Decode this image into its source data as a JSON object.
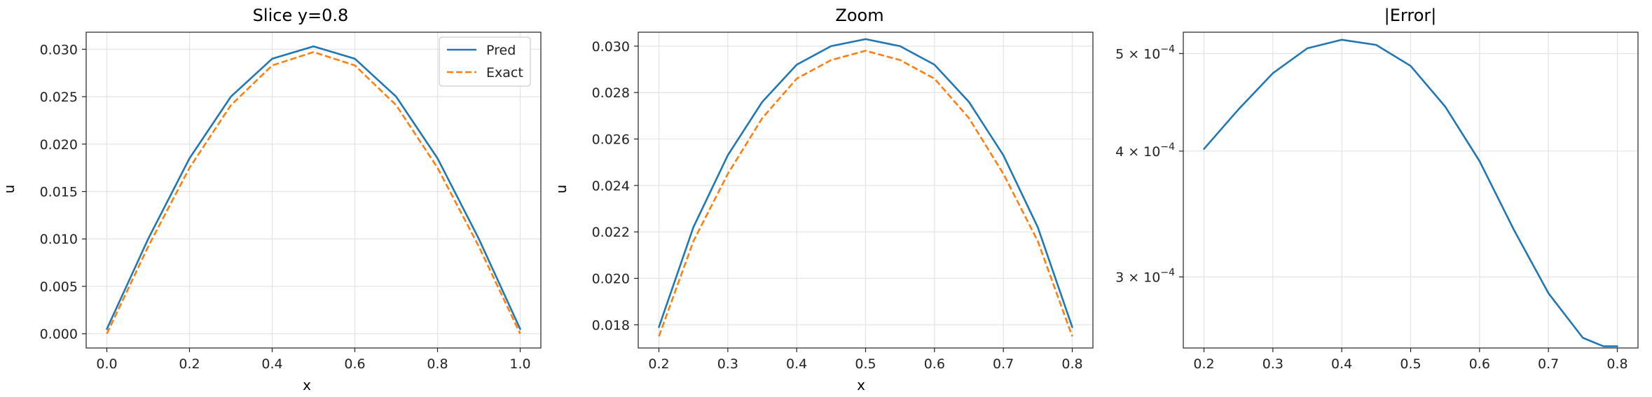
{
  "chart_data": [
    {
      "type": "line",
      "title": "Slice y=0.8",
      "xlabel": "x",
      "ylabel": "u",
      "xlim": [
        -0.05,
        1.05
      ],
      "ylim": [
        -0.0015,
        0.0318
      ],
      "xticks": [
        "0.0",
        "0.2",
        "0.4",
        "0.6",
        "0.8",
        "1.0"
      ],
      "xtick_values": [
        0.0,
        0.2,
        0.4,
        0.6,
        0.8,
        1.0
      ],
      "yticks": [
        "0.000",
        "0.005",
        "0.010",
        "0.015",
        "0.020",
        "0.025",
        "0.030"
      ],
      "ytick_values": [
        0.0,
        0.005,
        0.01,
        0.015,
        0.02,
        0.025,
        0.03
      ],
      "grid": true,
      "legend": "top-right",
      "series": [
        {
          "name": "Pred",
          "style": "solid",
          "color": "#1f77b4",
          "x": [
            0.0,
            0.1,
            0.2,
            0.3,
            0.4,
            0.5,
            0.6,
            0.7,
            0.8,
            0.9,
            1.0
          ],
          "y": [
            0.0005,
            0.01,
            0.0185,
            0.025,
            0.029,
            0.0303,
            0.029,
            0.025,
            0.0185,
            0.01,
            0.0005
          ]
        },
        {
          "name": "Exact",
          "style": "dashed",
          "color": "#ff7f0e",
          "x": [
            0.0,
            0.1,
            0.2,
            0.3,
            0.4,
            0.5,
            0.6,
            0.7,
            0.8,
            0.9,
            1.0
          ],
          "y": [
            0.0,
            0.0092,
            0.0175,
            0.0241,
            0.0283,
            0.0297,
            0.0283,
            0.0241,
            0.0175,
            0.0092,
            0.0
          ]
        }
      ]
    },
    {
      "type": "line",
      "title": "Zoom",
      "xlabel": "x",
      "ylabel": "u",
      "xlim": [
        0.17,
        0.83
      ],
      "ylim": [
        0.017,
        0.0306
      ],
      "xticks": [
        "0.2",
        "0.3",
        "0.4",
        "0.5",
        "0.6",
        "0.7",
        "0.8"
      ],
      "xtick_values": [
        0.2,
        0.3,
        0.4,
        0.5,
        0.6,
        0.7,
        0.8
      ],
      "yticks": [
        "0.018",
        "0.020",
        "0.022",
        "0.024",
        "0.026",
        "0.028",
        "0.030"
      ],
      "ytick_values": [
        0.018,
        0.02,
        0.022,
        0.024,
        0.026,
        0.028,
        0.03
      ],
      "grid": true,
      "series": [
        {
          "name": "Pred",
          "style": "solid",
          "color": "#1f77b4",
          "x": [
            0.2,
            0.25,
            0.3,
            0.35,
            0.4,
            0.45,
            0.5,
            0.55,
            0.6,
            0.65,
            0.7,
            0.75,
            0.8
          ],
          "y": [
            0.0179,
            0.0222,
            0.0253,
            0.0276,
            0.0292,
            0.03,
            0.0303,
            0.03,
            0.0292,
            0.0276,
            0.0253,
            0.0222,
            0.0179
          ]
        },
        {
          "name": "Exact",
          "style": "dashed",
          "color": "#ff7f0e",
          "x": [
            0.2,
            0.25,
            0.3,
            0.35,
            0.4,
            0.45,
            0.5,
            0.55,
            0.6,
            0.65,
            0.7,
            0.75,
            0.8
          ],
          "y": [
            0.0175,
            0.0216,
            0.0245,
            0.0269,
            0.0286,
            0.0294,
            0.0298,
            0.0294,
            0.0286,
            0.0269,
            0.0245,
            0.0216,
            0.0175
          ]
        }
      ]
    },
    {
      "type": "line",
      "title": "|Error|",
      "xlabel": "",
      "ylabel": "",
      "yscale": "log",
      "xlim": [
        0.17,
        0.83
      ],
      "ylim": [
        0.000255,
        0.000525
      ],
      "xticks": [
        "0.2",
        "0.3",
        "0.4",
        "0.5",
        "0.6",
        "0.7",
        "0.8"
      ],
      "xtick_values": [
        0.2,
        0.3,
        0.4,
        0.5,
        0.6,
        0.7,
        0.8
      ],
      "ytick_values": [
        0.0003,
        0.0004,
        0.0005
      ],
      "yticks": [
        {
          "mant": "3",
          "base": "× 10",
          "exp": "−4"
        },
        {
          "mant": "4",
          "base": "× 10",
          "exp": "−4"
        },
        {
          "mant": "5",
          "base": "× 10",
          "exp": "−4"
        }
      ],
      "grid": true,
      "series": [
        {
          "name": "",
          "style": "solid",
          "color": "#1f77b4",
          "x": [
            0.2,
            0.25,
            0.3,
            0.35,
            0.4,
            0.45,
            0.5,
            0.55,
            0.6,
            0.65,
            0.7,
            0.75,
            0.78,
            0.8
          ],
          "y": [
            0.000402,
            0.00044,
            0.000478,
            0.000506,
            0.000516,
            0.00051,
            0.000486,
            0.000443,
            0.000391,
            0.000334,
            0.000289,
            0.000261,
            0.000256,
            0.000256
          ]
        }
      ]
    }
  ]
}
